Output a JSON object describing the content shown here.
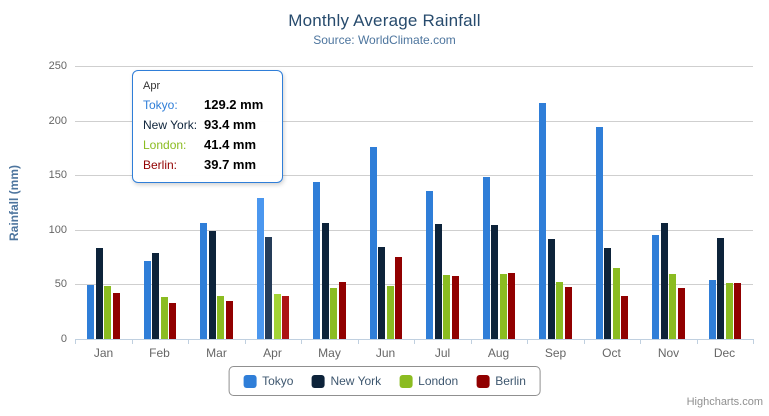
{
  "chart": {
    "title": "Monthly Average Rainfall",
    "subtitle": "Source: WorldClimate.com",
    "credits": "Highcharts.com",
    "colors": {
      "title_text": "#274b6d",
      "subtitle_text": "#4d759e",
      "axis_label_text": "#666666",
      "legend_text": "#3e576f",
      "gridline": "#cfcfcf",
      "axis_line": "#c0d0e0",
      "tooltip_border": "#2f7ed8",
      "credits_text": "#909090"
    }
  },
  "chart_data": {
    "type": "bar",
    "title": "Monthly Average Rainfall",
    "subtitle": "Source: WorldClimate.com",
    "xlabel": "",
    "ylabel": "Rainfall (mm)",
    "ylim": [
      0,
      250
    ],
    "y_ticks": [
      0,
      50,
      100,
      150,
      200,
      250
    ],
    "grid": true,
    "legend_position": "bottom",
    "categories": [
      "Jan",
      "Feb",
      "Mar",
      "Apr",
      "May",
      "Jun",
      "Jul",
      "Aug",
      "Sep",
      "Oct",
      "Nov",
      "Dec"
    ],
    "series": [
      {
        "name": "Tokyo",
        "color": "#2f7ed8",
        "hover_color": "#4b97ef",
        "values": [
          49.9,
          71.5,
          106.4,
          129.2,
          144.0,
          176.0,
          135.6,
          148.5,
          216.4,
          194.1,
          95.6,
          54.4
        ]
      },
      {
        "name": "New York",
        "color": "#0d233a",
        "hover_color": "#253c58",
        "values": [
          83.6,
          78.8,
          98.5,
          93.4,
          106.0,
          84.5,
          105.0,
          104.3,
          91.2,
          83.5,
          106.6,
          92.3
        ]
      },
      {
        "name": "London",
        "color": "#8bbc21",
        "hover_color": "#a3d435",
        "values": [
          48.9,
          38.8,
          39.3,
          41.4,
          47.0,
          48.3,
          59.0,
          59.6,
          52.4,
          65.2,
          59.3,
          51.2
        ]
      },
      {
        "name": "Berlin",
        "color": "#910000",
        "hover_color": "#ac1414",
        "values": [
          42.4,
          33.2,
          34.5,
          39.7,
          52.6,
          75.5,
          57.4,
          60.4,
          47.6,
          39.1,
          46.8,
          51.1
        ]
      }
    ]
  },
  "state": {
    "hovered_category": "Apr",
    "hovered_category_index": 3
  },
  "tooltip": {
    "header": "Apr",
    "rows": [
      {
        "name": "Tokyo:",
        "value": "129.2 mm",
        "color": "#2f7ed8"
      },
      {
        "name": "New York:",
        "value": "93.4 mm",
        "color": "#0d233a"
      },
      {
        "name": "London:",
        "value": "41.4 mm",
        "color": "#8bbc21"
      },
      {
        "name": "Berlin:",
        "value": "39.7 mm",
        "color": "#910000"
      }
    ]
  }
}
